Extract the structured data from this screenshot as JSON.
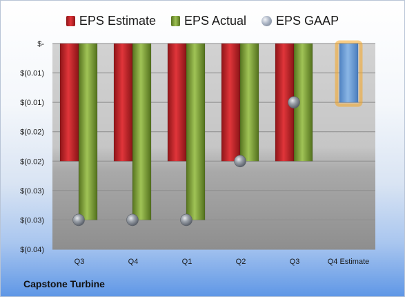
{
  "company_name": "Capstone Turbine",
  "legend": [
    {
      "name": "EPS Estimate",
      "color": "#c81f24",
      "icon": "bar-swatch"
    },
    {
      "name": "EPS Actual",
      "color": "#7a9c34",
      "icon": "bar-swatch"
    },
    {
      "name": "EPS GAAP",
      "color": "#9aa4b4",
      "icon": "sphere-marker"
    }
  ],
  "chart_data": {
    "type": "bar",
    "categories": [
      "Q3",
      "Q4",
      "Q1",
      "Q2",
      "Q3",
      "Q4 Estimate"
    ],
    "y_tick_labels": [
      "$-",
      "$(0.01)",
      "$(0.01)",
      "$(0.02)",
      "$(0.02)",
      "$(0.03)",
      "$(0.03)",
      "$(0.04)"
    ],
    "y_ticks": [
      0,
      -0.005,
      -0.01,
      -0.015,
      -0.02,
      -0.025,
      -0.03,
      -0.035
    ],
    "ylim": [
      -0.035,
      0
    ],
    "grid": true,
    "legend_position": "top",
    "series": [
      {
        "name": "EPS Estimate",
        "color": "#c81f24",
        "values": [
          -0.02,
          -0.02,
          -0.02,
          -0.02,
          -0.02,
          null
        ]
      },
      {
        "name": "EPS Actual",
        "color": "#7a9c34",
        "values": [
          -0.03,
          -0.03,
          -0.03,
          -0.02,
          -0.02,
          null
        ]
      },
      {
        "name": "EPS GAAP",
        "color": "#9aa4b4",
        "marker": "sphere",
        "values": [
          -0.03,
          -0.03,
          -0.03,
          -0.02,
          -0.01,
          null
        ]
      }
    ],
    "estimate_bar": {
      "category": "Q4 Estimate",
      "value": -0.01,
      "color": "#6f9fd6",
      "highlight_color": "#f5a623"
    }
  }
}
